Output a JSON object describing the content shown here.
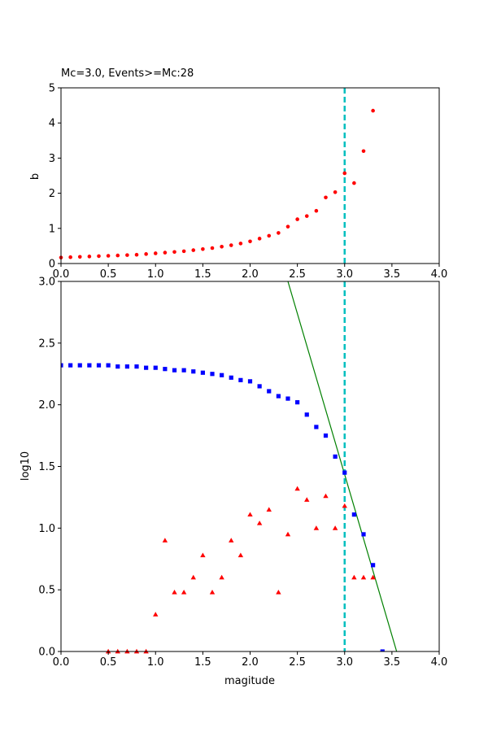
{
  "chart_data": [
    {
      "type": "scatter",
      "title": "Mc=3.0, Events>=Mc:28",
      "xlabel": "",
      "ylabel": "b",
      "xlim": [
        0,
        4
      ],
      "ylim": [
        0,
        5
      ],
      "xticks": [
        "0.0",
        "0.5",
        "1.0",
        "1.5",
        "2.0",
        "2.5",
        "3.0",
        "3.5",
        "4.0"
      ],
      "yticks": [
        "0",
        "1",
        "2",
        "3",
        "4",
        "5"
      ],
      "mc_line": 3.0,
      "grid": false,
      "colors": {
        "points": "#ff0000",
        "mc_line": "#00bfbf"
      },
      "series": [
        {
          "marker": "circle",
          "x": [
            0.0,
            0.1,
            0.2,
            0.3,
            0.4,
            0.5,
            0.6,
            0.7,
            0.8,
            0.9,
            1.0,
            1.1,
            1.2,
            1.3,
            1.4,
            1.5,
            1.6,
            1.7,
            1.8,
            1.9,
            2.0,
            2.1,
            2.2,
            2.3,
            2.4,
            2.5,
            2.6,
            2.7,
            2.8,
            2.9,
            3.0,
            3.1,
            3.2,
            3.3
          ],
          "y": [
            0.17,
            0.18,
            0.19,
            0.2,
            0.21,
            0.22,
            0.23,
            0.24,
            0.25,
            0.27,
            0.29,
            0.31,
            0.33,
            0.35,
            0.38,
            0.41,
            0.44,
            0.48,
            0.52,
            0.57,
            0.63,
            0.71,
            0.79,
            0.87,
            1.05,
            1.26,
            1.35,
            1.5,
            1.88,
            2.03,
            2.57,
            2.29,
            3.2,
            4.35
          ]
        }
      ]
    },
    {
      "type": "scatter",
      "title": "",
      "xlabel": "magitude",
      "ylabel": "log10",
      "xlim": [
        0,
        4
      ],
      "ylim": [
        0,
        3
      ],
      "xticks": [
        "0.0",
        "0.5",
        "1.0",
        "1.5",
        "2.0",
        "2.5",
        "3.0",
        "3.5",
        "4.0"
      ],
      "yticks": [
        "0.0",
        "0.5",
        "1.0",
        "1.5",
        "2.0",
        "2.5",
        "3.0"
      ],
      "mc_line": 3.0,
      "grid": false,
      "colors": {
        "cumulative": "#0000ff",
        "noncumulative": "#ff0000",
        "fit": "#008000",
        "mc_line": "#00bfbf"
      },
      "fit_line": {
        "x": [
          2.4,
          3.55
        ],
        "y": [
          3.0,
          0.0
        ]
      },
      "series": [
        {
          "marker": "square",
          "x": [
            0.0,
            0.1,
            0.2,
            0.3,
            0.4,
            0.5,
            0.6,
            0.7,
            0.8,
            0.9,
            1.0,
            1.1,
            1.2,
            1.3,
            1.4,
            1.5,
            1.6,
            1.7,
            1.8,
            1.9,
            2.0,
            2.1,
            2.2,
            2.3,
            2.4,
            2.5,
            2.6,
            2.7,
            2.8,
            2.9,
            3.0,
            3.1,
            3.2,
            3.3,
            3.4
          ],
          "y": [
            2.32,
            2.32,
            2.32,
            2.32,
            2.32,
            2.32,
            2.31,
            2.31,
            2.31,
            2.3,
            2.3,
            2.29,
            2.28,
            2.28,
            2.27,
            2.26,
            2.25,
            2.24,
            2.22,
            2.2,
            2.19,
            2.15,
            2.11,
            2.07,
            2.05,
            2.02,
            1.92,
            1.82,
            1.75,
            1.58,
            1.45,
            1.11,
            0.95,
            0.7,
            0.0
          ]
        },
        {
          "marker": "triangle",
          "x": [
            0.5,
            0.6,
            0.7,
            0.8,
            0.9,
            1.0,
            1.1,
            1.2,
            1.3,
            1.4,
            1.5,
            1.6,
            1.7,
            1.8,
            1.9,
            2.0,
            2.1,
            2.2,
            2.3,
            2.4,
            2.5,
            2.6,
            2.7,
            2.8,
            2.9,
            3.0,
            3.1,
            3.2,
            3.3
          ],
          "y": [
            0.0,
            0.0,
            0.0,
            0.0,
            0.0,
            0.3,
            0.9,
            0.48,
            0.48,
            0.6,
            0.78,
            0.48,
            0.6,
            0.9,
            0.78,
            1.11,
            1.04,
            1.15,
            0.48,
            0.95,
            1.32,
            1.23,
            1.0,
            1.26,
            1.0,
            1.18,
            0.6,
            0.6,
            0.6
          ]
        }
      ]
    }
  ]
}
